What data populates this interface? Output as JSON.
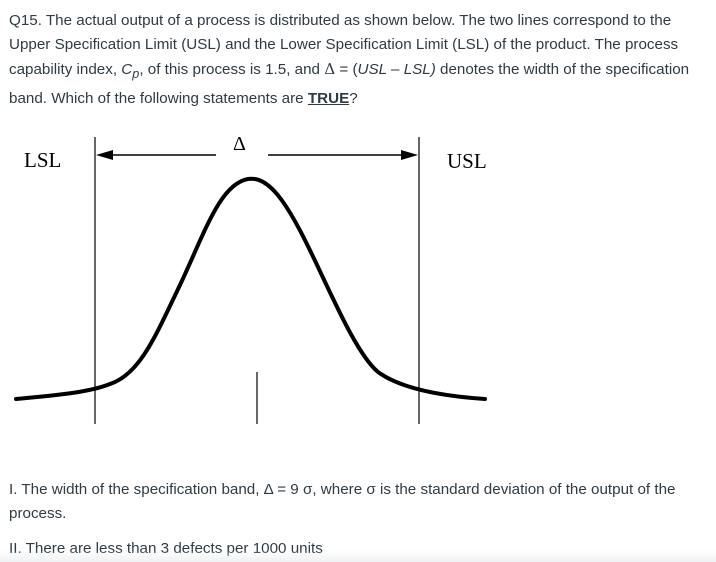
{
  "question": {
    "intro": "Q15. The actual output of a process is distributed as shown below. The two lines correspond to the Upper Specification Limit (USL) and the Lower Specification Limit (LSL) of the product. The process capability index, ",
    "cp_main": "C",
    "cp_sub": "p",
    "mid": ", of this process is 1.5, and ",
    "delta_symbol": "Δ",
    "eq": " = (",
    "formula": "USL – LSL)",
    "after": " denotes the width of the specification band. Which of the following statements are ",
    "emphasis": "TRUE",
    "end": "?"
  },
  "figure": {
    "lsl_label": "LSL",
    "usl_label": "USL",
    "delta_label": "Δ"
  },
  "statements": [
    "I. The width of the specification band, Δ = 9 σ, where σ is the standard deviation of the output of the process.",
    "II. There are less than 3 defects per 1000 units"
  ]
}
